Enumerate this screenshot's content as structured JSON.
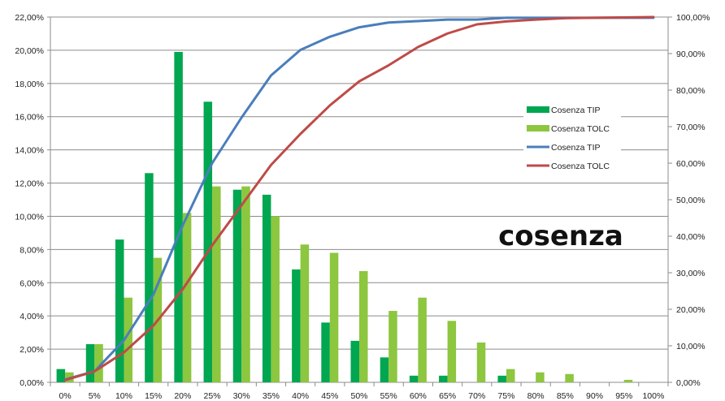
{
  "chart_data": {
    "type": "bar",
    "title": "",
    "xlabel": "",
    "ylabel": "",
    "overlay_label": "cosenza",
    "categories": [
      "0%",
      "5%",
      "10%",
      "15%",
      "20%",
      "25%",
      "30%",
      "35%",
      "40%",
      "45%",
      "50%",
      "55%",
      "60%",
      "65%",
      "70%",
      "75%",
      "80%",
      "85%",
      "90%",
      "95%",
      "100%"
    ],
    "left_axis": {
      "ylim": [
        0,
        22
      ],
      "ticks": [
        0,
        2,
        4,
        6,
        8,
        10,
        12,
        14,
        16,
        18,
        20,
        22
      ],
      "tick_labels": [
        "0,00%",
        "2,00%",
        "4,00%",
        "6,00%",
        "8,00%",
        "10,00%",
        "12,00%",
        "14,00%",
        "16,00%",
        "18,00%",
        "20,00%",
        "22,00%"
      ]
    },
    "right_axis": {
      "ylim": [
        0,
        100
      ],
      "ticks": [
        0,
        10,
        20,
        30,
        40,
        50,
        60,
        70,
        80,
        90,
        100
      ],
      "tick_labels": [
        "0,00%",
        "10,00%",
        "20,00%",
        "30,00%",
        "40,00%",
        "50,00%",
        "60,00%",
        "70,00%",
        "80,00%",
        "90,00%",
        "100,00%"
      ]
    },
    "grid": true,
    "legend_position": "right",
    "series": [
      {
        "name": "Cosenza TIP",
        "kind": "bar",
        "axis": "left",
        "color": "#00a650",
        "values": [
          0.8,
          2.3,
          8.6,
          12.6,
          19.9,
          16.9,
          11.6,
          11.3,
          6.8,
          3.6,
          2.5,
          1.5,
          0.4,
          0.4,
          0.0,
          0.4,
          0.0,
          0.0,
          0.0,
          0.0,
          0.0
        ]
      },
      {
        "name": "Cosenza TOLC",
        "kind": "bar",
        "axis": "left",
        "color": "#8dc63f",
        "values": [
          0.6,
          2.3,
          5.1,
          7.5,
          10.2,
          11.8,
          11.8,
          10.0,
          8.3,
          7.8,
          6.7,
          4.3,
          5.1,
          3.7,
          2.4,
          0.8,
          0.6,
          0.5,
          0.0,
          0.15,
          0.0
        ]
      },
      {
        "name": "Cosenza TIP",
        "kind": "line",
        "axis": "right",
        "color": "#4a7ebb",
        "values": [
          0.8,
          3.0,
          11.5,
          24.0,
          43.0,
          60.0,
          72.5,
          84.0,
          91.0,
          94.6,
          97.2,
          98.5,
          98.9,
          99.3,
          99.3,
          99.8,
          99.8,
          99.8,
          99.8,
          99.8,
          99.8
        ]
      },
      {
        "name": "Cosenza TOLC",
        "kind": "line",
        "axis": "right",
        "color": "#be4b48",
        "values": [
          0.6,
          3.0,
          8.2,
          15.5,
          25.5,
          37.5,
          48.5,
          59.5,
          68.0,
          75.8,
          82.4,
          86.8,
          91.8,
          95.5,
          98.0,
          98.8,
          99.3,
          99.7,
          99.8,
          99.9,
          100.0
        ]
      }
    ]
  }
}
